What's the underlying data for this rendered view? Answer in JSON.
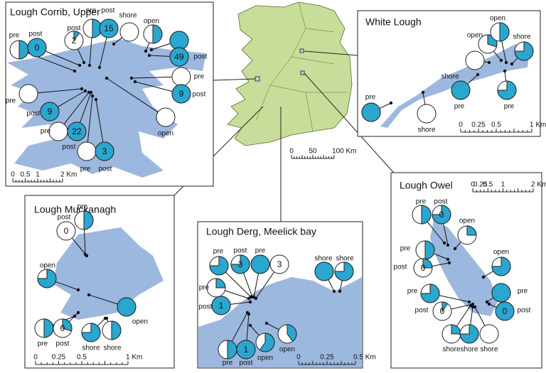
{
  "overview_scale": [
    "0",
    "50",
    "100 Km"
  ],
  "panels": [
    {
      "title": "Lough Corrib, Upper",
      "scale": [
        "0",
        "0.5",
        "1",
        "2 Km"
      ],
      "pies": [
        {
          "label": "pre",
          "share": 0.5
        },
        {
          "label": "post",
          "share": 1,
          "number": 0
        },
        {
          "label": "post",
          "share": 0.1,
          "number": 2
        },
        {
          "label": "pre",
          "share": 0.5
        },
        {
          "label": "post",
          "share": 1,
          "number": 15
        },
        {
          "label": "shore",
          "share": 0
        },
        {
          "label": "open",
          "share": 0.5
        },
        {
          "share": 1
        },
        {
          "label": "post",
          "share": 1,
          "number": 49
        },
        {
          "label": "pre",
          "share": 0
        },
        {
          "label": "post",
          "share": 1,
          "number": 9
        },
        {
          "label": "pre",
          "share": 0
        },
        {
          "label": "post",
          "share": 1,
          "number": 9
        },
        {
          "label": "pre",
          "share": 0
        },
        {
          "label": "post",
          "share": 1,
          "number": 22
        },
        {
          "label": "pre",
          "share": 0
        },
        {
          "label": "post",
          "share": 1,
          "number": 3
        },
        {
          "label": "open",
          "share": 0
        }
      ]
    },
    {
      "title": "White Lough",
      "scale": [
        "0",
        "0.25",
        "0.5",
        "1 Km"
      ],
      "pies": [
        {
          "label": "open",
          "share": 0.3
        },
        {
          "label": "open",
          "share": 0.5
        },
        {
          "label": "shore",
          "share": 0.75
        },
        {
          "label": "shore",
          "share": 0
        },
        {
          "label": "pre",
          "share": 1
        },
        {
          "label": "pre",
          "share": 0.75
        },
        {
          "label": "pre",
          "share": 1
        },
        {
          "label": "shore",
          "share": 0
        }
      ]
    },
    {
      "title": "Lough Muckanagh",
      "scale": [
        "0",
        "0.25",
        "0.5",
        "1 Km"
      ],
      "pies": [
        {
          "label": "post",
          "share": 0,
          "number": 0
        },
        {
          "label": "pre",
          "share": 0.5
        },
        {
          "label": "open",
          "share": 0.75
        },
        {
          "label": "open",
          "share": 1
        },
        {
          "label": "pre",
          "share": 0.5
        },
        {
          "label": "post",
          "share": 0.3,
          "number": 0
        },
        {
          "label": "shore",
          "share": 0.75
        },
        {
          "label": "shore",
          "share": 0.5
        }
      ]
    },
    {
      "title": "Lough Derg, Meelick bay",
      "scale": [
        "0",
        "0.25",
        "0.5 Km"
      ],
      "pies": [
        {
          "label": "pre",
          "share": 0.75
        },
        {
          "label": "post",
          "share": 0.75,
          "number": 3
        },
        {
          "label": "pre",
          "share": 1
        },
        {
          "share": 0,
          "number": 3
        },
        {
          "label": "pre",
          "share": 0.25
        },
        {
          "label": "post",
          "share": 1,
          "number": 1
        },
        {
          "label": "pre",
          "share": 0.5
        },
        {
          "label": "post",
          "share": 1,
          "number": 1
        },
        {
          "label": "open",
          "share": 0.6
        },
        {
          "label": "open",
          "share": 0.4
        },
        {
          "label": "shore",
          "share": 1
        },
        {
          "label": "shore",
          "share": 0.75
        }
      ]
    },
    {
      "title": "Lough Owel",
      "scale": [
        "0",
        "0.25",
        "0.5",
        "1",
        "2 Km"
      ],
      "pies": [
        {
          "label": "pre",
          "share": 0.5
        },
        {
          "label": "post",
          "share": 0.75,
          "number": 0
        },
        {
          "label": "open",
          "share": 0.25
        },
        {
          "label": "pre",
          "share": 0.5
        },
        {
          "label": "post",
          "share": 0.25,
          "number": 0
        },
        {
          "label": "open",
          "share": 0.75
        },
        {
          "label": "pre",
          "share": 0.75
        },
        {
          "label": "post",
          "share": 0.1,
          "number": 0
        },
        {
          "label": "pre",
          "share": 1
        },
        {
          "label": "post",
          "share": 1,
          "number": 0
        },
        {
          "label": "shore",
          "share": 0.25
        },
        {
          "label": "shore",
          "share": 0.75
        },
        {
          "label": "shore",
          "share": 0
        }
      ]
    }
  ]
}
